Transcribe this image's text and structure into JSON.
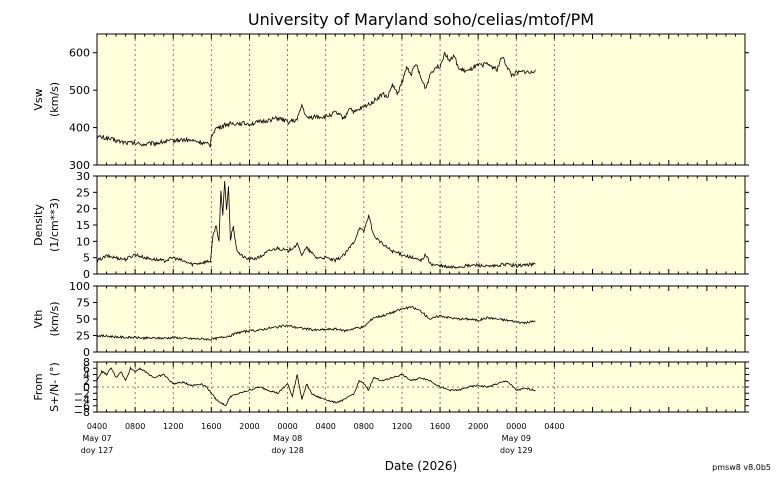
{
  "title": "University of Maryland  soho/celias/mtof/PM",
  "version": "pmsw8 v8.0b5",
  "chart_data": {
    "type": "line",
    "x_label": "Date (2026)",
    "x_start_hour": 4,
    "x_end_hour": 72,
    "x_ticks": [
      {
        "hour": 4,
        "label": "0400"
      },
      {
        "hour": 8,
        "label": "0800"
      },
      {
        "hour": 12,
        "label": "1200"
      },
      {
        "hour": 16,
        "label": "1600"
      },
      {
        "hour": 20,
        "label": "2000"
      },
      {
        "hour": 24,
        "label": "0000"
      },
      {
        "hour": 28,
        "label": "0400"
      },
      {
        "hour": 32,
        "label": "0800"
      },
      {
        "hour": 36,
        "label": "1200"
      },
      {
        "hour": 40,
        "label": "1600"
      },
      {
        "hour": 44,
        "label": "2000"
      },
      {
        "hour": 48,
        "label": "0000"
      },
      {
        "hour": 52,
        "label": "0400"
      }
    ],
    "day_labels": [
      {
        "hour": 4,
        "date": "May 07",
        "doy": "doy 127"
      },
      {
        "hour": 24,
        "date": "May 08",
        "doy": "doy 128"
      },
      {
        "hour": 48,
        "date": "May 09",
        "doy": "doy 129"
      }
    ],
    "panels": [
      {
        "id": "vsw",
        "ylabel": "Vsw",
        "yunit": "(km/s)",
        "ylim": [
          300,
          650
        ],
        "yticks": [
          300,
          400,
          500,
          600
        ],
        "zero_line": false,
        "x": [
          4.0,
          5,
          6,
          7,
          8,
          9,
          10,
          11,
          12,
          13,
          14,
          15,
          15.9,
          16.0,
          16.5,
          17,
          17.5,
          18,
          19,
          20,
          21,
          22,
          23,
          24,
          25,
          25.5,
          26,
          27,
          28,
          29,
          30,
          30.5,
          31,
          32,
          33,
          34,
          34.5,
          35,
          35.5,
          36,
          36.5,
          37,
          37.5,
          38,
          38.5,
          39,
          39.5,
          40,
          40.5,
          41,
          41.5,
          42,
          43,
          43.5,
          44,
          45,
          46,
          46.5,
          47,
          47.5,
          48,
          49,
          49.5,
          50
        ],
        "y": [
          375,
          372,
          365,
          360,
          358,
          355,
          358,
          362,
          365,
          368,
          365,
          360,
          352,
          380,
          398,
          402,
          408,
          410,
          412,
          410,
          414,
          420,
          425,
          415,
          420,
          460,
          425,
          430,
          428,
          440,
          425,
          455,
          440,
          455,
          470,
          490,
          480,
          515,
          490,
          520,
          560,
          545,
          570,
          530,
          505,
          545,
          560,
          565,
          600,
          580,
          590,
          555,
          550,
          560,
          565,
          570,
          555,
          590,
          565,
          540,
          545,
          550,
          545,
          555
        ]
      },
      {
        "id": "density",
        "ylabel": "Density",
        "yunit": "(1/cm**3)",
        "ylim": [
          0,
          30
        ],
        "yticks": [
          0,
          5,
          10,
          15,
          20,
          25,
          30
        ],
        "zero_line": false,
        "x": [
          4.0,
          5,
          6,
          7,
          8,
          9,
          10,
          11,
          12,
          13,
          14,
          15,
          15.9,
          16.2,
          16.5,
          16.8,
          17.0,
          17.2,
          17.4,
          17.6,
          17.8,
          18.0,
          18.3,
          18.6,
          19,
          19.5,
          20,
          21,
          22,
          23,
          24,
          25,
          25.5,
          26,
          27,
          28,
          29,
          30,
          31,
          31.5,
          32,
          32.5,
          33,
          34,
          35,
          36,
          37,
          38,
          38.5,
          39,
          40,
          41,
          42,
          43,
          44,
          45,
          46,
          47,
          48,
          49,
          50
        ],
        "y": [
          4,
          5.5,
          5,
          4.5,
          6,
          5,
          4.5,
          4,
          5,
          4,
          3,
          3.5,
          4,
          12,
          15,
          10,
          25,
          18,
          28,
          20,
          27,
          10,
          15,
          8,
          6,
          5,
          4.5,
          5,
          7,
          8,
          7,
          9,
          6,
          8,
          5,
          5,
          4,
          6,
          10,
          14,
          13,
          18,
          12,
          9,
          7,
          6,
          5,
          4,
          6,
          3,
          2.5,
          2,
          2.2,
          2.5,
          2.8,
          2.2,
          2.5,
          3,
          2.5,
          2.8,
          3
        ]
      },
      {
        "id": "vth",
        "ylabel": "Vth",
        "yunit": "(km/s)",
        "ylim": [
          0,
          100
        ],
        "yticks": [
          0,
          25,
          50,
          75,
          100
        ],
        "zero_line": false,
        "x": [
          4.0,
          5,
          6,
          7,
          8,
          9,
          10,
          11,
          12,
          13,
          14,
          15,
          16,
          17,
          18,
          19,
          20,
          21,
          22,
          23,
          24,
          25,
          26,
          27,
          28,
          29,
          30,
          31,
          32,
          33,
          34,
          35,
          36,
          37,
          38,
          38.5,
          39,
          40,
          41,
          42,
          43,
          44,
          45,
          46,
          47,
          48,
          49,
          50
        ],
        "y": [
          25,
          24,
          23,
          22,
          22,
          21,
          21,
          21,
          22,
          21,
          20,
          20,
          19,
          22,
          25,
          30,
          32,
          33,
          36,
          38,
          40,
          37,
          35,
          33,
          34,
          35,
          32,
          36,
          38,
          52,
          55,
          60,
          65,
          68,
          62,
          55,
          50,
          55,
          52,
          50,
          50,
          48,
          52,
          50,
          48,
          46,
          44,
          47
        ]
      },
      {
        "id": "from",
        "ylabel": "From",
        "yunit": "S+/N- (°)",
        "ylim": [
          -8,
          8
        ],
        "yticks": [
          -8,
          -6,
          -4,
          -2,
          0,
          2,
          4,
          6,
          8
        ],
        "zero_line": true,
        "x": [
          4.0,
          4.5,
          5,
          5.5,
          6,
          6.5,
          7,
          7.5,
          8,
          8.5,
          9,
          10,
          11,
          12,
          13,
          14,
          15,
          15.5,
          16,
          16.5,
          17,
          17.5,
          18,
          19,
          20,
          21,
          22,
          23,
          24,
          24.5,
          25,
          25.5,
          26,
          26.5,
          27,
          28,
          29,
          30,
          31,
          31.5,
          32,
          32.5,
          33,
          34,
          35,
          36,
          37,
          38,
          39,
          40,
          41,
          42,
          43,
          44,
          45,
          46,
          47,
          48,
          49,
          50
        ],
        "y": [
          2,
          5,
          4,
          6,
          3,
          5,
          2,
          6,
          5,
          6,
          5,
          3,
          4,
          1,
          1.5,
          0.5,
          1,
          0,
          -2,
          -4,
          -5,
          -6,
          -3,
          -2,
          -1,
          0,
          -1,
          -2,
          1,
          -3,
          4,
          -4,
          1,
          -2,
          -3,
          -4,
          -5,
          -4,
          -2,
          2,
          1,
          -1,
          3,
          2,
          3,
          4,
          2,
          3,
          2,
          0,
          -1,
          -1,
          0,
          0.5,
          0,
          1,
          2,
          -1,
          -0.5,
          -1
        ]
      }
    ]
  }
}
